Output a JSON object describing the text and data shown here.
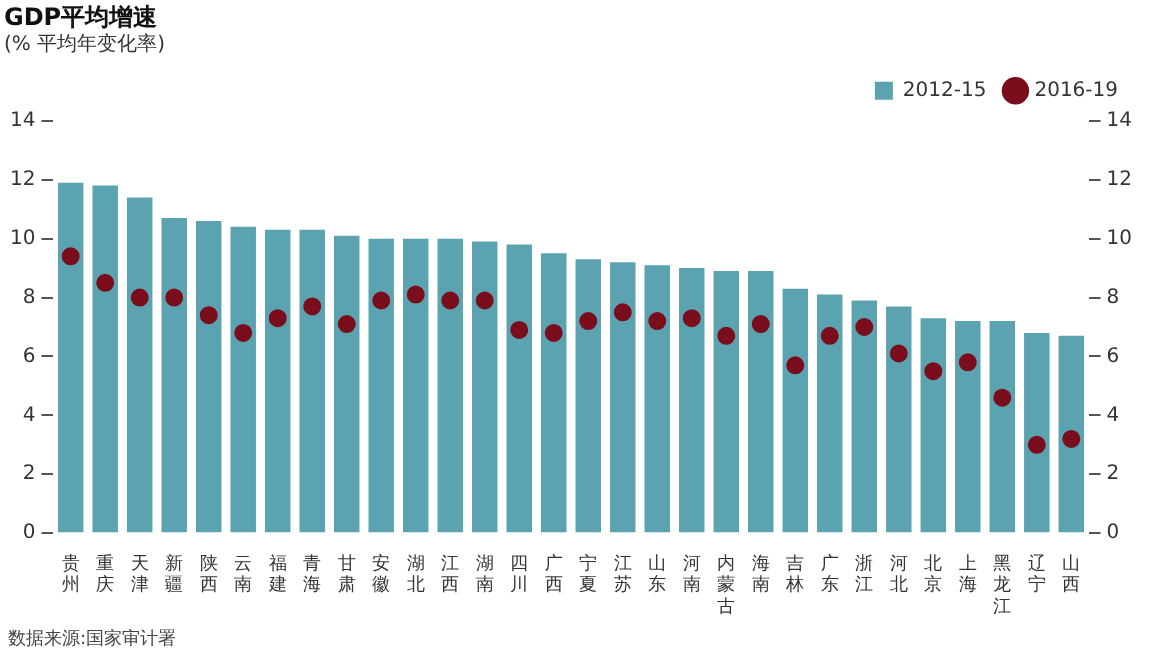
{
  "chart_data": {
    "type": "bar",
    "title": "GDP平均增速",
    "subtitle": "(% 平均年变化率)",
    "categories": [
      "贵州",
      "重庆",
      "天津",
      "新疆",
      "陕西",
      "云南",
      "福建",
      "青海",
      "甘肃",
      "安徽",
      "湖北",
      "江西",
      "湖南",
      "四川",
      "广西",
      "宁夏",
      "江苏",
      "山东",
      "河南",
      "内蒙古",
      "海南",
      "吉林",
      "广东",
      "浙江",
      "河北",
      "北京",
      "上海",
      "黑龙江",
      "辽宁",
      "山西"
    ],
    "series": [
      {
        "name": "2012-15",
        "color": "#5ba3b0",
        "values": [
          11.9,
          11.8,
          11.4,
          10.7,
          10.6,
          10.4,
          10.3,
          10.3,
          10.1,
          10.0,
          10.0,
          10.0,
          9.9,
          9.8,
          9.5,
          9.3,
          9.2,
          9.1,
          9.0,
          8.9,
          8.9,
          8.3,
          8.1,
          7.9,
          7.7,
          7.3,
          7.2,
          7.2,
          6.8,
          6.7
        ]
      },
      {
        "name": "2016-19",
        "type": "scatter",
        "color": "#7a0e1c",
        "values": [
          9.4,
          8.5,
          8.0,
          8.0,
          7.4,
          6.8,
          7.3,
          7.7,
          7.1,
          7.9,
          8.1,
          7.9,
          7.9,
          6.9,
          6.8,
          7.2,
          7.5,
          7.2,
          7.3,
          6.7,
          7.1,
          5.7,
          6.7,
          7.0,
          6.1,
          5.5,
          5.8,
          4.6,
          3.0,
          3.2
        ]
      }
    ],
    "ylim": [
      0,
      14
    ],
    "yticks": [
      0,
      2,
      4,
      6,
      8,
      10,
      12,
      14
    ],
    "y2lim": [
      0,
      14
    ],
    "y2ticks": [
      0,
      2,
      4,
      6,
      8,
      10,
      12,
      14
    ],
    "grid": false,
    "legend": "top right",
    "marker": "circle",
    "annotations": [
      "数据来源:国家审计署"
    ]
  }
}
